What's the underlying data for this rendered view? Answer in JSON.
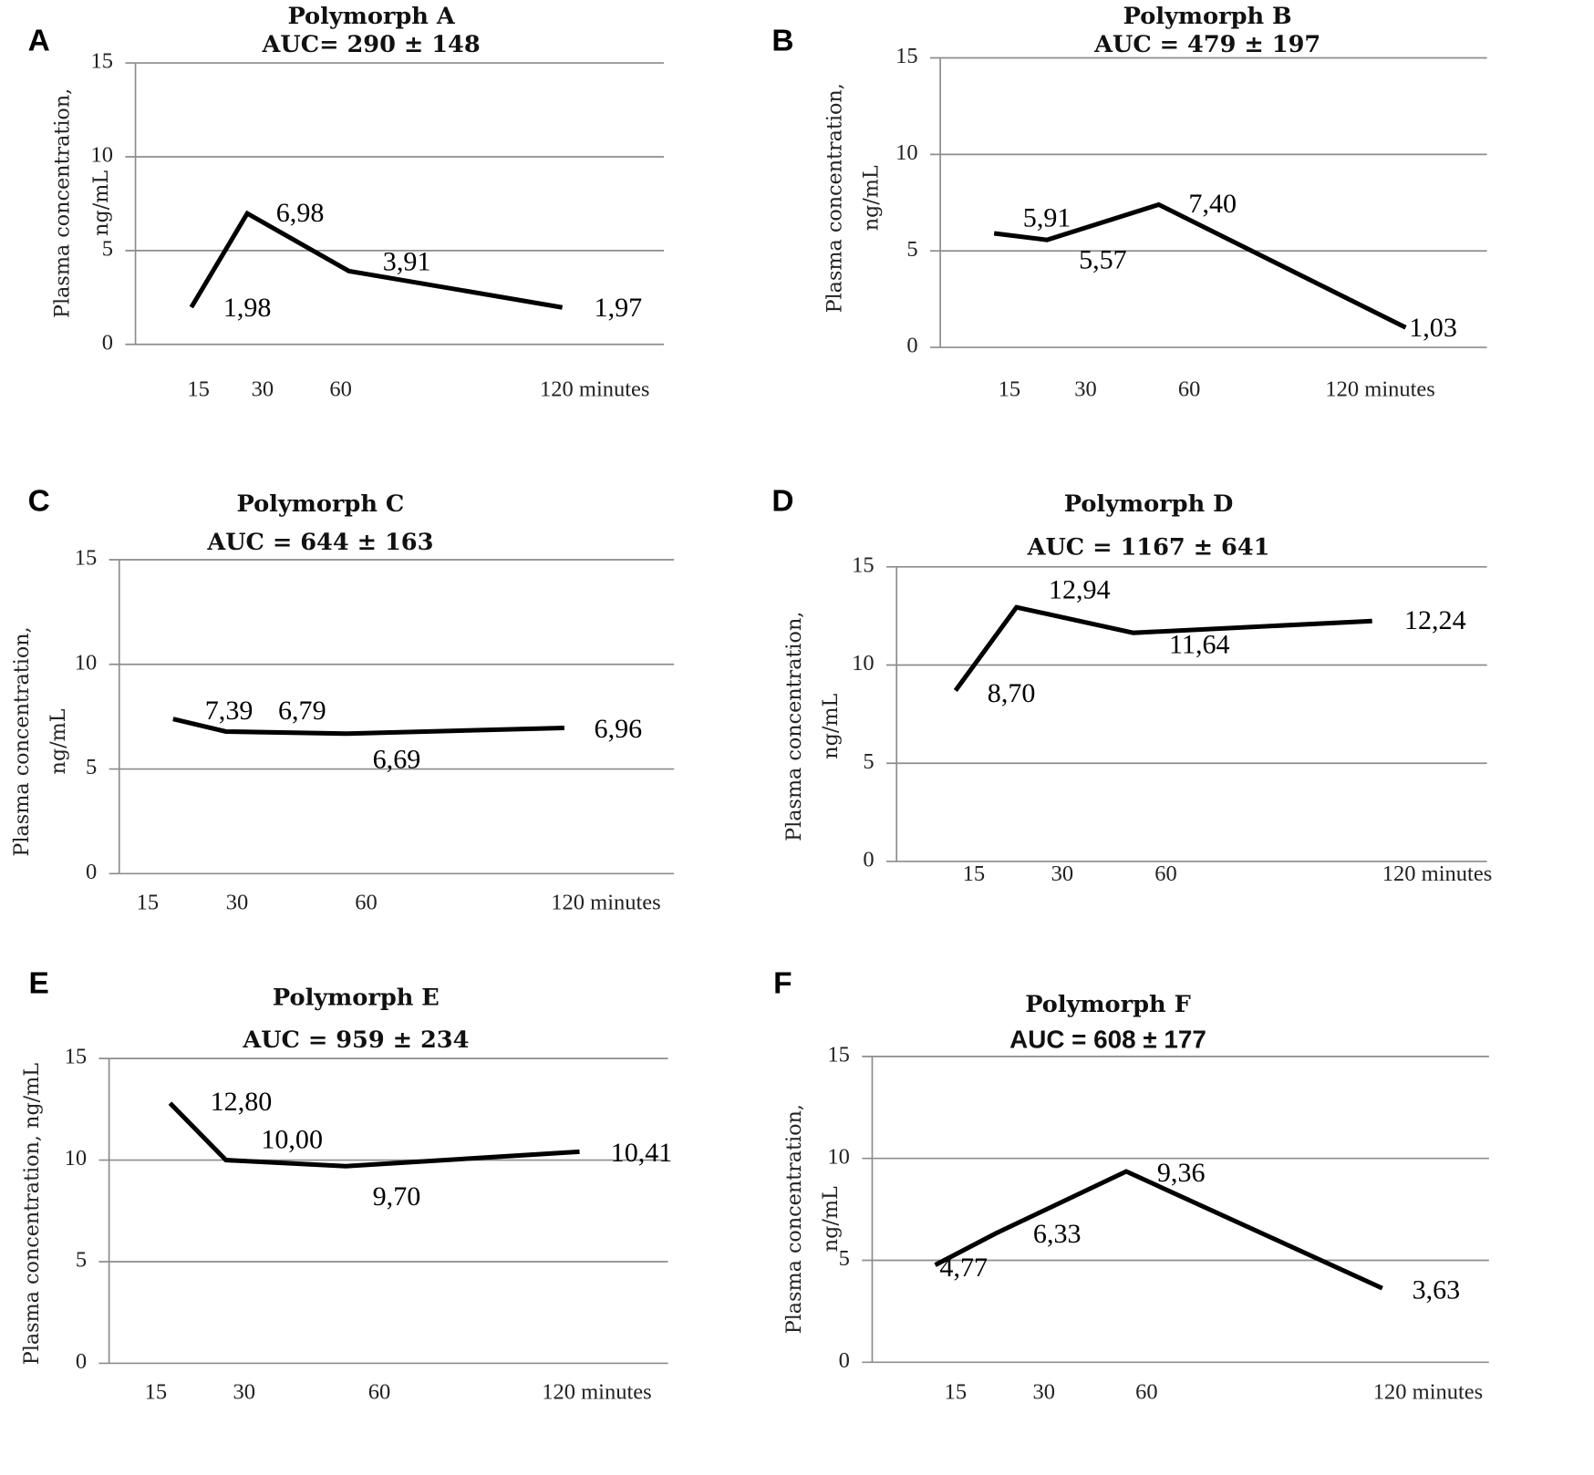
{
  "chart_data": [
    {
      "panel": "A",
      "type": "line",
      "title": "Polymorph A",
      "subtitle": "AUC= 290 ± 148",
      "ylabel": [
        "Plasma concentration,",
        "ng/mL"
      ],
      "xlabel": "minutes",
      "categories": [
        "15",
        "30",
        "60",
        "120"
      ],
      "values": [
        1.98,
        6.98,
        3.91,
        1.97
      ],
      "labels": [
        "1,98",
        "6,98",
        "3,91",
        "1,97"
      ],
      "yticks": [
        "0",
        "5",
        "10",
        "15"
      ],
      "ylim": [
        0,
        15
      ],
      "grid": true
    },
    {
      "panel": "B",
      "type": "line",
      "title": "Polymorph B",
      "subtitle": "AUC =  479 ± 197",
      "ylabel": [
        "Plasma concentration,",
        "ng/mL"
      ],
      "xlabel": "minutes",
      "categories": [
        "15",
        "30",
        "60",
        "120"
      ],
      "values": [
        5.91,
        5.57,
        7.4,
        1.03
      ],
      "labels": [
        "5,91",
        "5,57",
        "7,40",
        "1,03"
      ],
      "yticks": [
        "0",
        "5",
        "10",
        "15"
      ],
      "ylim": [
        0,
        15
      ],
      "grid": true
    },
    {
      "panel": "C",
      "type": "line",
      "title": "Polymorph C",
      "subtitle": "AUC =  644 ± 163",
      "ylabel": [
        "Plasma concentration,",
        "ng/mL"
      ],
      "xlabel": "minutes",
      "categories": [
        "15",
        "30",
        "60",
        "120"
      ],
      "values": [
        7.39,
        6.79,
        6.69,
        6.96
      ],
      "labels": [
        "7,39",
        "6,79",
        "6,69",
        "6,96"
      ],
      "yticks": [
        "0",
        "5",
        "10",
        "15"
      ],
      "ylim": [
        0,
        15
      ],
      "grid": true
    },
    {
      "panel": "D",
      "type": "line",
      "title": "Polymorph D",
      "subtitle": "AUC =  1167 ± 641",
      "ylabel": [
        "Plasma concentration,",
        "ng/mL"
      ],
      "xlabel": "minutes",
      "categories": [
        "15",
        "30",
        "60",
        "120"
      ],
      "values": [
        8.7,
        12.94,
        11.64,
        12.24
      ],
      "labels": [
        "8,70",
        "12,94",
        "11,64",
        "12,24"
      ],
      "yticks": [
        "0",
        "5",
        "10",
        "15"
      ],
      "ylim": [
        0,
        15
      ],
      "grid": true
    },
    {
      "panel": "E",
      "type": "line",
      "title": "Polymorph E",
      "subtitle": "AUC =  959 ± 234",
      "ylabel": [
        "Plasma concentration, ng/mL"
      ],
      "xlabel": "minutes",
      "categories": [
        "15",
        "30",
        "60",
        "120"
      ],
      "values": [
        12.8,
        10.0,
        9.7,
        10.41
      ],
      "labels": [
        "12,80",
        "10,00",
        "9,70",
        "10,41"
      ],
      "yticks": [
        "0",
        "5",
        "10",
        "15"
      ],
      "ylim": [
        0,
        15
      ],
      "grid": true
    },
    {
      "panel": "F",
      "type": "line",
      "title": "Polymorph F",
      "subtitle": "AUC =  608 ± 177",
      "ylabel": [
        "Plasma concentration,",
        "ng/mL"
      ],
      "xlabel": "minutes",
      "categories": [
        "15",
        "30",
        "60",
        "120"
      ],
      "values": [
        4.77,
        6.33,
        9.36,
        3.63
      ],
      "labels": [
        "4,77",
        "6,33",
        "9,36",
        "3,63"
      ],
      "yticks": [
        "0",
        "5",
        "10",
        "15"
      ],
      "ylim": [
        0,
        15
      ],
      "grid": true
    }
  ]
}
